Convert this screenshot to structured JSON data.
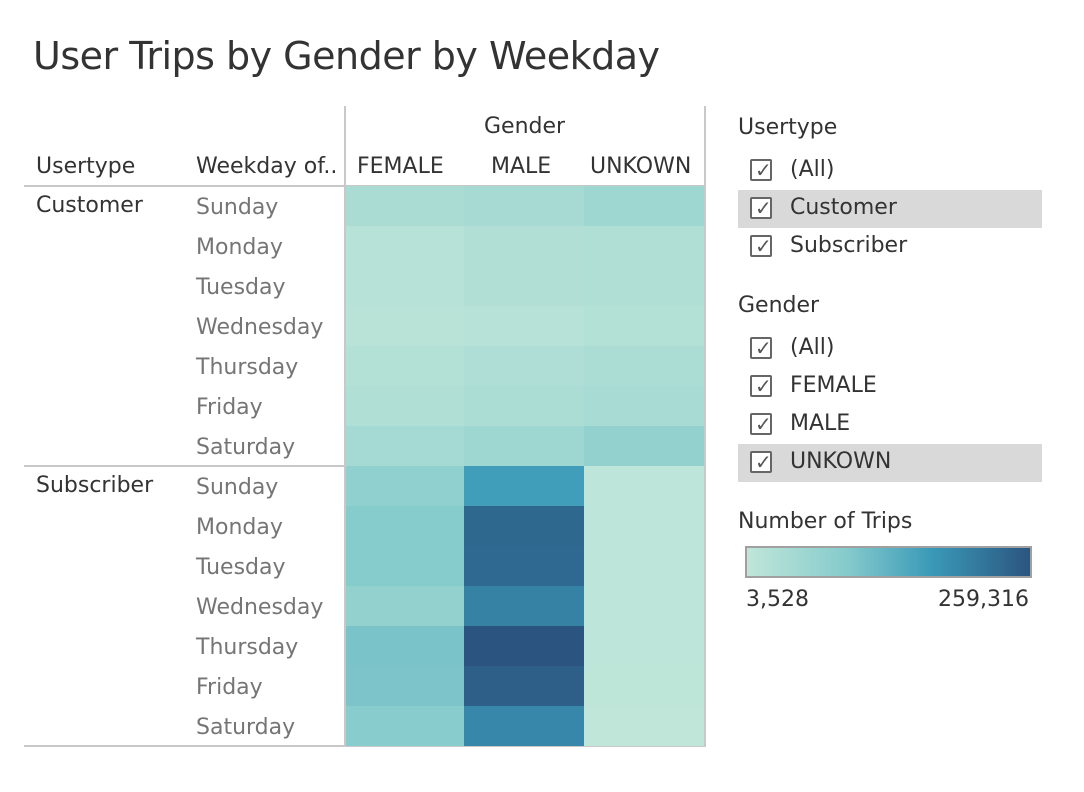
{
  "title": "User Trips by Gender by Weekday",
  "table": {
    "col_header_group": "Gender",
    "row_header_1": "Usertype",
    "row_header_2": "Weekday of..",
    "columns": [
      "FEMALE",
      "MALE",
      "UNKOWN"
    ],
    "groups": [
      {
        "label": "Customer",
        "days": [
          "Sunday",
          "Monday",
          "Tuesday",
          "Wednesday",
          "Thursday",
          "Friday",
          "Saturday"
        ]
      },
      {
        "label": "Subscriber",
        "days": [
          "Sunday",
          "Monday",
          "Tuesday",
          "Wednesday",
          "Thursday",
          "Friday",
          "Saturday"
        ]
      }
    ]
  },
  "filters": {
    "usertype": {
      "title": "Usertype",
      "items": [
        {
          "label": "(All)",
          "checked": true,
          "highlighted": false
        },
        {
          "label": "Customer",
          "checked": true,
          "highlighted": true
        },
        {
          "label": "Subscriber",
          "checked": true,
          "highlighted": false
        }
      ]
    },
    "gender": {
      "title": "Gender",
      "items": [
        {
          "label": "(All)",
          "checked": true,
          "highlighted": false
        },
        {
          "label": "FEMALE",
          "checked": true,
          "highlighted": false
        },
        {
          "label": "MALE",
          "checked": true,
          "highlighted": false
        },
        {
          "label": "UNKOWN",
          "checked": true,
          "highlighted": true
        }
      ]
    }
  },
  "legend": {
    "title": "Number of Trips",
    "min_label": "3,528",
    "max_label": "259,316",
    "min": 3528,
    "max": 259316,
    "colors": [
      "#bfe6d9",
      "#86cbcc",
      "#3a9ab8",
      "#2b5580"
    ]
  },
  "chart_data": {
    "type": "heatmap",
    "title": "User Trips by Gender by Weekday",
    "x_categories": [
      "FEMALE",
      "MALE",
      "UNKOWN"
    ],
    "y_groups": [
      "Customer",
      "Subscriber"
    ],
    "y_categories": [
      "Sunday",
      "Monday",
      "Tuesday",
      "Wednesday",
      "Thursday",
      "Friday",
      "Saturday"
    ],
    "value_range": [
      3528,
      259316
    ],
    "values": {
      "Customer": [
        [
          25000,
          30000,
          40000
        ],
        [
          12000,
          17000,
          19000
        ],
        [
          11000,
          17000,
          19000
        ],
        [
          8000,
          12000,
          14000
        ],
        [
          14000,
          21000,
          24000
        ],
        [
          18000,
          24000,
          28000
        ],
        [
          32000,
          40000,
          55000
        ]
      ],
      "Subscriber": [
        [
          60000,
          155000,
          5000
        ],
        [
          72000,
          232000,
          4500
        ],
        [
          72000,
          230000,
          4500
        ],
        [
          55000,
          195000,
          4300
        ],
        [
          88000,
          259316,
          5000
        ],
        [
          85000,
          245000,
          5200
        ],
        [
          70000,
          188000,
          3528
        ]
      ]
    }
  }
}
